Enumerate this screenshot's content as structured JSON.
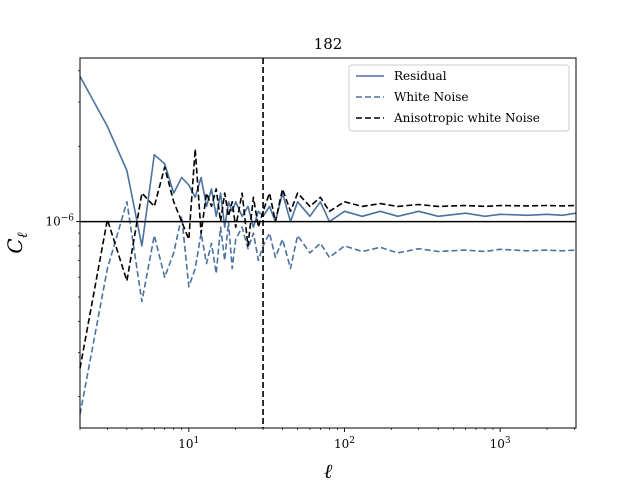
{
  "chart_data": {
    "type": "line",
    "title": "182",
    "xlabel": "ℓ",
    "ylabel": "C",
    "ylabel_sub": "ℓ",
    "xscale": "log",
    "yscale": "log",
    "xlim": [
      2,
      3072
    ],
    "ylim": [
      1.5e-07,
      4.5e-06
    ],
    "xticks": [
      {
        "value": 10,
        "base": "10",
        "exp": "1"
      },
      {
        "value": 100,
        "base": "10",
        "exp": "2"
      },
      {
        "value": 1000,
        "base": "10",
        "exp": "3"
      }
    ],
    "yticks": [
      {
        "value": 1e-06,
        "base": "10",
        "exp": "−6"
      }
    ],
    "hline": {
      "y": 1e-06,
      "color": "#000000"
    },
    "vline": {
      "x": 30,
      "color": "#000000",
      "style": "dashed"
    },
    "legend": {
      "placement": "top-right"
    },
    "series": [
      {
        "name": "Residual",
        "color": "#4c72a0",
        "style": "solid",
        "x": [
          2,
          3,
          4,
          5,
          6,
          7,
          8,
          9,
          10,
          11,
          12,
          13,
          14,
          15,
          16,
          17,
          18,
          19,
          20,
          22,
          24,
          26,
          28,
          30,
          33,
          36,
          40,
          45,
          50,
          60,
          70,
          80,
          100,
          130,
          170,
          220,
          300,
          400,
          600,
          800,
          1000,
          1500,
          2000,
          2500,
          3072
        ],
        "y": [
          3.8e-06,
          2.4e-06,
          1.6e-06,
          8e-07,
          1.85e-06,
          1.7e-06,
          1.3e-06,
          1.5e-06,
          1.4e-06,
          1.25e-06,
          1.5e-06,
          1.15e-06,
          1.35e-06,
          1.05e-06,
          1.3e-06,
          9.5e-07,
          1.2e-06,
          1.1e-06,
          1.2e-06,
          1.05e-06,
          1.15e-06,
          9.5e-07,
          1.1e-06,
          1.05e-06,
          1.15e-06,
          1e-06,
          1.3e-06,
          1e-06,
          1.2e-06,
          1.05e-06,
          1.2e-06,
          1e-06,
          1.1e-06,
          1.05e-06,
          1.1e-06,
          1.05e-06,
          1.1e-06,
          1.05e-06,
          1.08e-06,
          1.05e-06,
          1.07e-06,
          1.06e-06,
          1.07e-06,
          1.06e-06,
          1.08e-06
        ]
      },
      {
        "name": "White Noise",
        "color": "#4c72a0",
        "style": "dashed",
        "x": [
          2,
          3,
          4,
          5,
          6,
          7,
          8,
          9,
          10,
          11,
          12,
          13,
          14,
          15,
          16,
          17,
          18,
          19,
          20,
          22,
          24,
          26,
          28,
          30,
          33,
          36,
          40,
          45,
          50,
          60,
          70,
          80,
          100,
          130,
          170,
          220,
          300,
          400,
          600,
          800,
          1000,
          1500,
          2000,
          2500,
          3072
        ],
        "y": [
          1.7e-07,
          6.5e-07,
          1.2e-06,
          4.8e-07,
          8.8e-07,
          6e-07,
          7.5e-07,
          1.05e-06,
          5.5e-07,
          6.5e-07,
          9e-07,
          6.8e-07,
          8.2e-07,
          6.2e-07,
          9.5e-07,
          7e-07,
          1e-06,
          6.5e-07,
          8.5e-07,
          9.5e-07,
          7.8e-07,
          9e-07,
          7e-07,
          8e-07,
          9e-07,
          7.2e-07,
          8.5e-07,
          6.5e-07,
          8.8e-07,
          7.5e-07,
          8.2e-07,
          7.2e-07,
          8e-07,
          7.6e-07,
          7.9e-07,
          7.5e-07,
          7.8e-07,
          7.6e-07,
          7.7e-07,
          7.6e-07,
          7.75e-07,
          7.65e-07,
          7.7e-07,
          7.65e-07,
          7.7e-07
        ]
      },
      {
        "name": "Anisotropic white Noise",
        "color": "#000000",
        "style": "dashed",
        "x": [
          2,
          3,
          4,
          5,
          6,
          7,
          8,
          9,
          10,
          11,
          12,
          13,
          14,
          15,
          16,
          17,
          18,
          19,
          20,
          22,
          24,
          26,
          28,
          30,
          33,
          36,
          40,
          45,
          50,
          60,
          70,
          80,
          100,
          130,
          170,
          220,
          300,
          400,
          600,
          800,
          1000,
          1500,
          2000,
          2500,
          3072
        ],
        "y": [
          2.6e-07,
          1.02e-06,
          5.8e-07,
          1.3e-06,
          1.15e-06,
          1.65e-06,
          1.2e-06,
          1e-06,
          8.5e-07,
          1.95e-06,
          9e-07,
          1.3e-06,
          1.15e-06,
          1.35e-06,
          1e-06,
          1.3e-06,
          1.05e-06,
          1.2e-06,
          9.5e-07,
          1.3e-06,
          8e-07,
          1.25e-06,
          9.5e-07,
          1.1e-06,
          1.3e-06,
          1e-06,
          1.35e-06,
          1.1e-06,
          1.3e-06,
          1.15e-06,
          1.25e-06,
          1.1e-06,
          1.2e-06,
          1.15e-06,
          1.18e-06,
          1.15e-06,
          1.17e-06,
          1.15e-06,
          1.16e-06,
          1.15e-06,
          1.16e-06,
          1.155e-06,
          1.16e-06,
          1.155e-06,
          1.16e-06
        ]
      }
    ]
  }
}
